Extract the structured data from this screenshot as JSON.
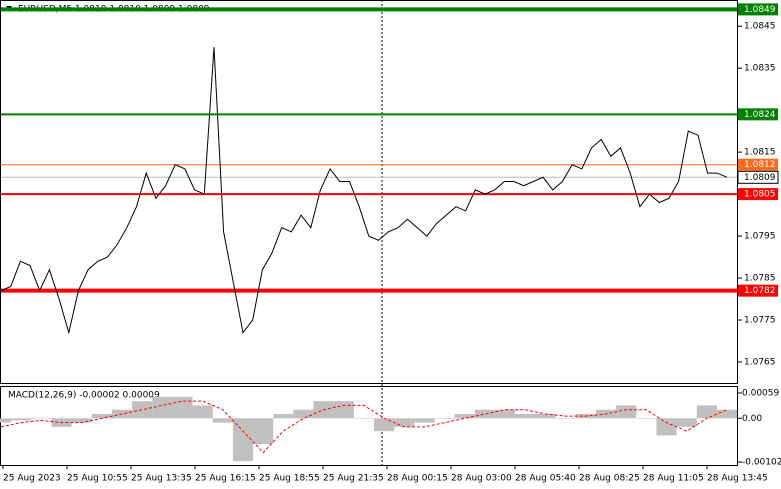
{
  "chart_data": {
    "type": "line",
    "title": "EURUSD,M5  1.0810 1.0810 1.0809 1.0809",
    "series": [
      {
        "name": "EURUSD",
        "color": "#000000",
        "values": [
          1.0782,
          1.0783,
          1.0789,
          1.0788,
          1.0782,
          1.0787,
          1.078,
          1.0772,
          1.0782,
          1.0787,
          1.0789,
          1.079,
          1.0793,
          1.0797,
          1.0802,
          1.081,
          1.0804,
          1.0807,
          1.0812,
          1.0811,
          1.0806,
          1.0805,
          1.084,
          1.0796,
          1.0784,
          1.0772,
          1.0775,
          1.0787,
          1.0791,
          1.0797,
          1.0796,
          1.08,
          1.0797,
          1.0806,
          1.0811,
          1.0808,
          1.0808,
          1.0802,
          1.0795,
          1.0794,
          1.0796,
          1.0797,
          1.0799,
          1.0797,
          1.0795,
          1.0798,
          1.08,
          1.0802,
          1.0801,
          1.0806,
          1.0805,
          1.0806,
          1.0808,
          1.0808,
          1.0807,
          1.0808,
          1.0809,
          1.0806,
          1.0808,
          1.0812,
          1.0811,
          1.0816,
          1.0818,
          1.0814,
          1.0816,
          1.081,
          1.0802,
          1.0805,
          1.0803,
          1.0804,
          1.0808,
          1.082,
          1.0819,
          1.081,
          1.081,
          1.0809
        ]
      }
    ],
    "ylim": [
      1.076,
      1.0851
    ],
    "yticks": [
      1.0845,
      1.0835,
      1.0815,
      1.0795,
      1.0785,
      1.0775,
      1.0765
    ],
    "levels": [
      {
        "value": 1.0849,
        "color": "#008000"
      },
      {
        "value": 1.0824,
        "color": "#008000"
      },
      {
        "value": 1.0812,
        "color": "#ff6a1a"
      },
      {
        "value": 1.0805,
        "color": "#ff0000"
      },
      {
        "value": 1.0782,
        "color": "#ff0000"
      }
    ],
    "last": 1.0809,
    "time_labels": [
      "25 Aug 2023",
      "25 Aug 10:55",
      "25 Aug 13:35",
      "25 Aug 16:15",
      "25 Aug 18:55",
      "25 Aug 21:35",
      "28 Aug 00:15",
      "28 Aug 03:00",
      "28 Aug 05:40",
      "28 Aug 08:25",
      "28 Aug 11:05",
      "28 Aug 13:45"
    ],
    "macd": {
      "title": "MACD(12,26,9) -0.00002 0.00009",
      "histogram": [
        -0.0001,
        -5e-05,
        0.0,
        -0.0002,
        -0.0001,
        0.0001,
        0.0002,
        0.0004,
        0.0005,
        0.0005,
        0.0003,
        -0.0001,
        -0.001,
        -0.0006,
        0.0001,
        0.0002,
        0.0004,
        0.0004,
        0.0,
        -0.0003,
        -0.0002,
        -0.0001,
        0.0,
        0.0001,
        0.0002,
        0.0002,
        0.0001,
        0.0001,
        0.0,
        0.0001,
        0.0002,
        0.0003,
        0.0,
        -0.0004,
        -0.0002,
        0.0003,
        0.0002
      ],
      "signal": [
        -0.0002,
        -0.0001,
        -5e-05,
        -0.0001,
        -0.0001,
        0.0,
        0.0001,
        0.0002,
        0.0003,
        0.0004,
        0.0004,
        0.0002,
        -0.0003,
        -0.0008,
        -0.0003,
        0.0,
        0.0002,
        0.0003,
        0.0003,
        0.0,
        -0.0002,
        -0.0002,
        -0.0001,
        0.0,
        0.0001,
        0.0002,
        0.0002,
        0.0001,
        5e-05,
        5e-05,
        0.0001,
        0.0002,
        0.0002,
        -0.0001,
        -0.0003,
        0.0,
        0.0002
      ],
      "ylim": [
        -0.00109,
        0.00073
      ],
      "yticks": [
        0.00059,
        {
          "value": 0,
          "label": "0.00"
        },
        -0.00102
      ]
    }
  }
}
